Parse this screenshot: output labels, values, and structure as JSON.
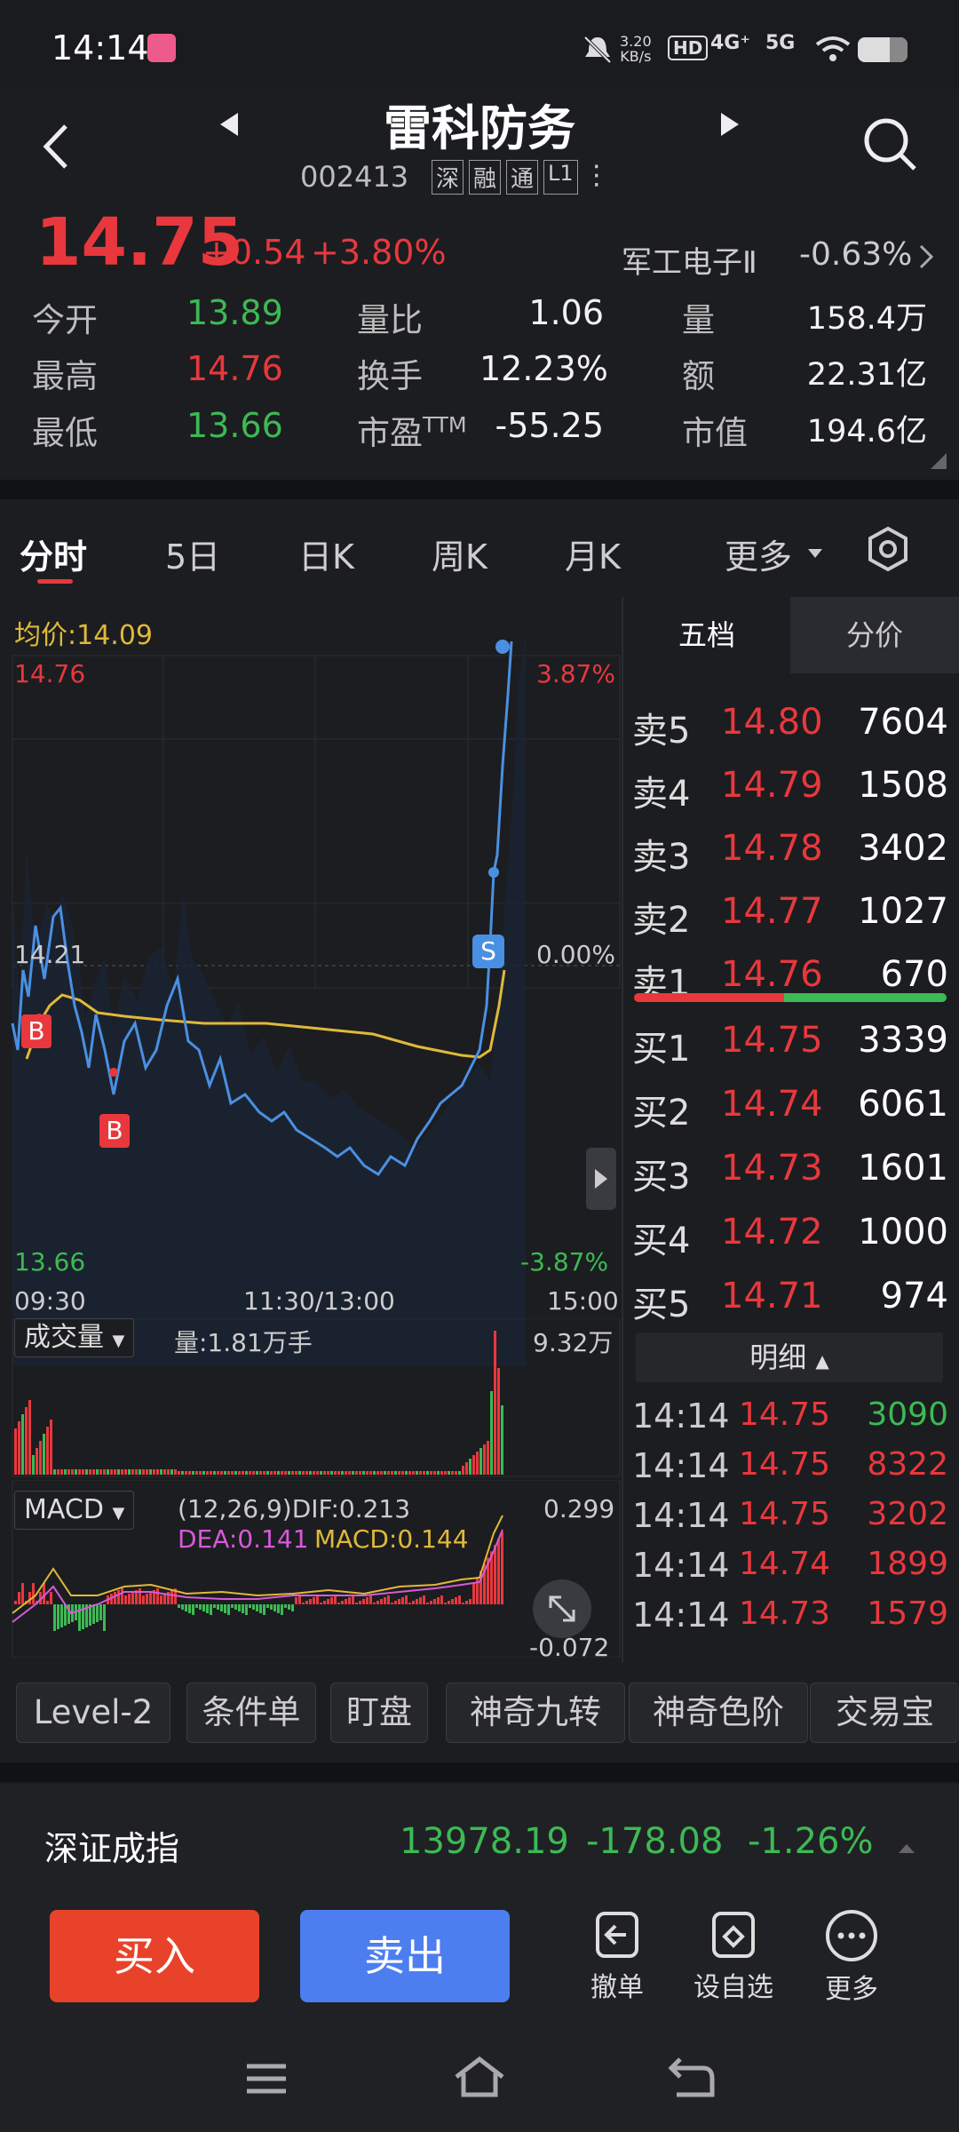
{
  "status_bar": {
    "time": "14:14",
    "net_speed": "3.20",
    "net_unit": "KB/s",
    "sig1": "4G⁺",
    "sig2": "5G"
  },
  "header": {
    "title": "雷科防务",
    "code": "002413",
    "tags": [
      "深",
      "融",
      "通",
      "L1"
    ]
  },
  "quote": {
    "price": "14.75",
    "change": "+0.54",
    "change_pct": "+3.80%",
    "sector_name": "军工电子Ⅱ",
    "sector_change": "-0.63%"
  },
  "stats": {
    "open_label": "今开",
    "open": "13.89",
    "high_label": "最高",
    "high": "14.76",
    "low_label": "最低",
    "low": "13.66",
    "vr_label": "量比",
    "vr": "1.06",
    "turnover_label": "换手",
    "turnover": "12.23%",
    "pe_label": "市盈",
    "pe_sup": "TTM",
    "pe": "-55.25",
    "vol_label": "量",
    "vol": "158.4万",
    "amt_label": "额",
    "amt": "22.31亿",
    "mcap_label": "市值",
    "mcap": "194.6亿"
  },
  "tabs": [
    "分时",
    "5日",
    "日K",
    "周K",
    "月K",
    "更多"
  ],
  "chart": {
    "avg_label": "均价:14.09",
    "top_price": "14.76",
    "top_pct": "3.87%",
    "mid_price": "14.21",
    "mid_pct": "0.00%",
    "bot_price": "13.66",
    "bot_pct": "-3.87%",
    "time_start": "09:30",
    "time_mid": "11:30/13:00",
    "time_end": "15:00",
    "buy_marker": "B",
    "sell_marker": "S",
    "vol_selector": "成交量",
    "vol_info": "量:1.81万手",
    "vol_max": "9.32万",
    "macd_selector": "MACD",
    "macd_params": "(12,26,9)DIF:0.213",
    "dea": "DEA:0.141",
    "macd_val": "MACD:0.144",
    "macd_top": "0.299",
    "macd_bot": "-0.072"
  },
  "orderbook": {
    "tab_active": "五档",
    "tab_other": "分价",
    "asks": [
      {
        "label": "卖5",
        "price": "14.80",
        "vol": "7604"
      },
      {
        "label": "卖4",
        "price": "14.79",
        "vol": "1508"
      },
      {
        "label": "卖3",
        "price": "14.78",
        "vol": "3402"
      },
      {
        "label": "卖2",
        "price": "14.77",
        "vol": "1027"
      },
      {
        "label": "卖1",
        "price": "14.76",
        "vol": "670"
      }
    ],
    "bids": [
      {
        "label": "买1",
        "price": "14.75",
        "vol": "3339"
      },
      {
        "label": "买2",
        "price": "14.74",
        "vol": "6061"
      },
      {
        "label": "买3",
        "price": "14.73",
        "vol": "1601"
      },
      {
        "label": "买4",
        "price": "14.72",
        "vol": "1000"
      },
      {
        "label": "买5",
        "price": "14.71",
        "vol": "974"
      }
    ],
    "detail_label": "明细",
    "ticks": [
      {
        "time": "14:14",
        "price": "14.75",
        "vol": "3090"
      },
      {
        "time": "14:14",
        "price": "14.75",
        "vol": "8322"
      },
      {
        "time": "14:14",
        "price": "14.75",
        "vol": "3202"
      },
      {
        "time": "14:14",
        "price": "14.74",
        "vol": "1899"
      },
      {
        "time": "14:14",
        "price": "14.73",
        "vol": "1579"
      }
    ]
  },
  "functions": [
    "Level-2",
    "条件单",
    "盯盘",
    "神奇九转",
    "神奇色阶",
    "交易宝"
  ],
  "index_bar": {
    "name": "深证成指",
    "value": "13978.19",
    "change": "-178.08",
    "pct": "-1.26%"
  },
  "actions": {
    "buy": "买入",
    "sell": "卖出",
    "cancel": "撤单",
    "watch": "设自选",
    "more": "更多"
  },
  "colors": {
    "up": "#e8383d",
    "down": "#3cba54",
    "price_line": "#4a90e2",
    "avg_line": "#e0b93a",
    "buy_btn": "#e8432a",
    "sell_btn": "#4d7ef0"
  }
}
